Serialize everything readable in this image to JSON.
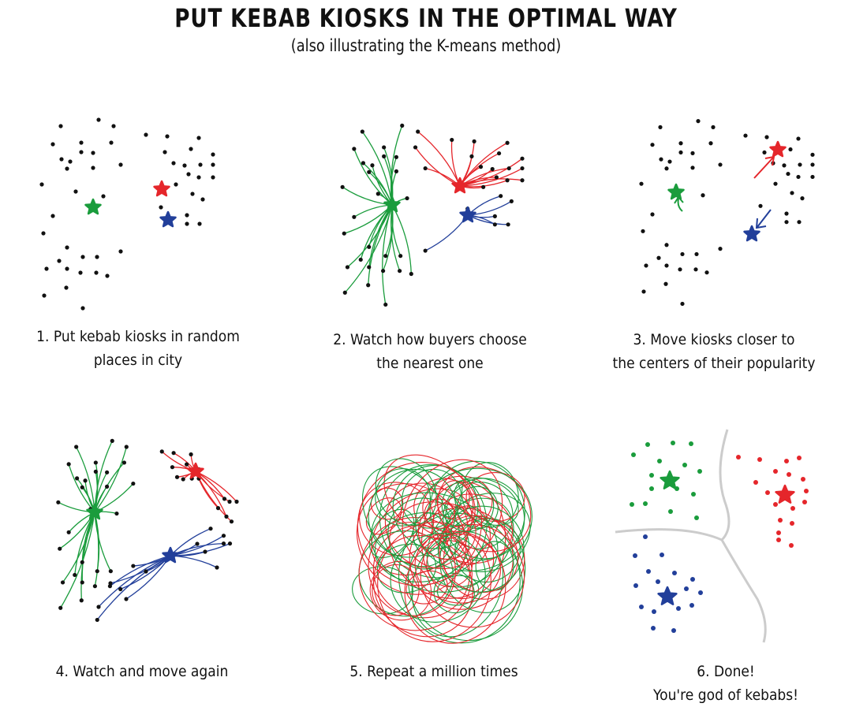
{
  "title": "PUT KEBAB KIOSKS IN THE OPTIMAL WAY",
  "subtitle": "(also illustrating the K-means method)",
  "colors": {
    "green": "#1a9c3c",
    "red": "#e5262b",
    "blue": "#223f9a",
    "dot": "#111111",
    "boundary": "#cccccc"
  },
  "steps": [
    {
      "caption_line1": "1. Put kebab kiosks in random",
      "caption_line2": "places in city"
    },
    {
      "caption_line1": "2. Watch how buyers choose",
      "caption_line2": "the nearest one"
    },
    {
      "caption_line1": "3. Move kiosks closer to",
      "caption_line2": "the centers of their popularity"
    },
    {
      "caption_line1": "4. Watch and move again",
      "caption_line2": ""
    },
    {
      "caption_line1": "5. Repeat a million times",
      "caption_line2": ""
    },
    {
      "caption_line1": "6. Done!",
      "caption_line2": "You're god of kebabs!"
    }
  ]
}
